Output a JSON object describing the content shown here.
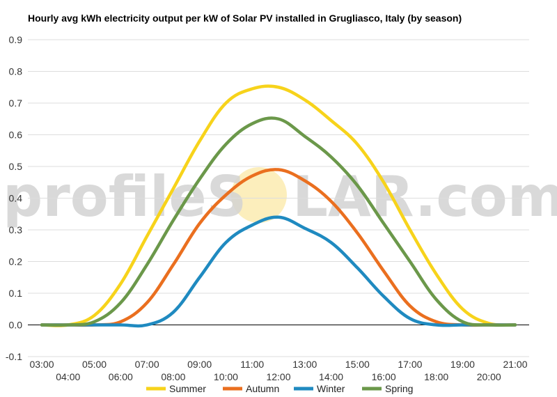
{
  "chart_data": {
    "type": "line",
    "title": "Hourly avg kWh electricity output per kW of Solar PV installed in Grugliasco, Italy (by season)",
    "xlabel": "",
    "ylabel": "",
    "ylim": [
      -0.1,
      0.9
    ],
    "yticks": [
      "-0.1",
      "0.0",
      "0.1",
      "0.2",
      "0.3",
      "0.4",
      "0.5",
      "0.6",
      "0.7",
      "0.8",
      "0.9"
    ],
    "x": [
      "03:00",
      "04:00",
      "05:00",
      "06:00",
      "07:00",
      "08:00",
      "09:00",
      "10:00",
      "11:00",
      "12:00",
      "13:00",
      "14:00",
      "15:00",
      "16:00",
      "17:00",
      "18:00",
      "19:00",
      "20:00",
      "21:00"
    ],
    "legend_position": "bottom",
    "grid": true,
    "watermark": {
      "left": "profileS",
      "right": "LAR.com",
      "sun_color": "#fbe8a6"
    },
    "series": [
      {
        "name": "Summer",
        "color": "#f7d31b",
        "values": [
          0.0,
          0.0,
          0.03,
          0.13,
          0.28,
          0.43,
          0.58,
          0.7,
          0.745,
          0.75,
          0.71,
          0.645,
          0.57,
          0.45,
          0.3,
          0.16,
          0.05,
          0.005,
          0.0
        ]
      },
      {
        "name": "Autumn",
        "color": "#ea6f1f",
        "values": [
          0.0,
          0.0,
          0.0,
          0.01,
          0.07,
          0.19,
          0.32,
          0.41,
          0.47,
          0.49,
          0.455,
          0.39,
          0.29,
          0.17,
          0.06,
          0.01,
          0.0,
          0.0,
          0.0
        ]
      },
      {
        "name": "Winter",
        "color": "#1f8ac0",
        "values": [
          0.0,
          0.0,
          0.0,
          0.0,
          0.0,
          0.04,
          0.15,
          0.26,
          0.315,
          0.34,
          0.305,
          0.26,
          0.18,
          0.09,
          0.02,
          0.0,
          0.0,
          0.0,
          0.0
        ]
      },
      {
        "name": "Spring",
        "color": "#6b984a",
        "values": [
          0.0,
          0.0,
          0.01,
          0.07,
          0.19,
          0.33,
          0.46,
          0.57,
          0.635,
          0.65,
          0.595,
          0.53,
          0.44,
          0.32,
          0.2,
          0.08,
          0.01,
          0.0,
          0.0
        ]
      }
    ]
  }
}
